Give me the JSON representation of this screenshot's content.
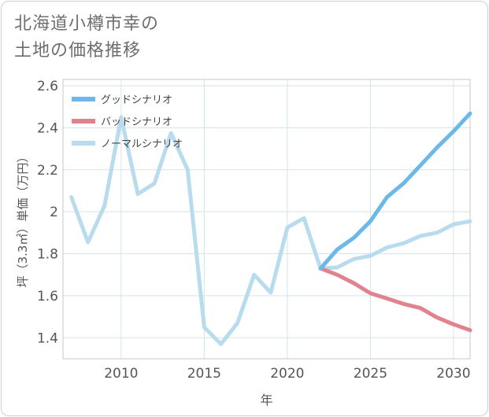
{
  "title_lines": [
    "北海道小樽市幸の",
    "土地の価格推移"
  ],
  "chart_data": {
    "type": "line",
    "xlabel": "年",
    "ylabel": "坪（3.3㎡）単価（万円）",
    "xlim": [
      2006.5,
      2031
    ],
    "ylim": [
      1.3,
      2.63
    ],
    "x_ticks": [
      2010,
      2015,
      2020,
      2025,
      2030
    ],
    "y_ticks": [
      1.4,
      1.6,
      1.8,
      2,
      2.2,
      2.4,
      2.6
    ],
    "y_tick_labels": [
      "1.4",
      "1.6",
      "1.8",
      "2",
      "2.2",
      "2.4",
      "2.6"
    ],
    "grid": true,
    "legend_position": "top-left",
    "series": [
      {
        "name": "グッドシナリオ",
        "color": "#6cb8e9",
        "x": [
          2022,
          2023,
          2024,
          2025,
          2026,
          2027,
          2028,
          2029,
          2030,
          2031
        ],
        "y": [
          1.73,
          1.82,
          1.876,
          1.955,
          2.07,
          2.136,
          2.22,
          2.305,
          2.383,
          2.468
        ]
      },
      {
        "name": "バッドシナリオ",
        "color": "#e0838f",
        "x": [
          2022,
          2023,
          2024,
          2025,
          2026,
          2027,
          2028,
          2029,
          2030,
          2031
        ],
        "y": [
          1.73,
          1.7,
          1.66,
          1.612,
          1.587,
          1.561,
          1.542,
          1.497,
          1.464,
          1.436
        ]
      },
      {
        "name": "ノーマルシナリオ",
        "color": "#b8dcee",
        "x": [
          2007,
          2008,
          2009,
          2010,
          2011,
          2012,
          2013,
          2014,
          2015,
          2016,
          2017,
          2018,
          2019,
          2020,
          2021,
          2022,
          2023,
          2024,
          2025,
          2026,
          2027,
          2028,
          2029,
          2030,
          2031
        ],
        "y": [
          2.07,
          1.855,
          2.03,
          2.45,
          2.085,
          2.135,
          2.375,
          2.2,
          1.45,
          1.37,
          1.47,
          1.7,
          1.615,
          1.925,
          1.97,
          1.73,
          1.735,
          1.775,
          1.79,
          1.83,
          1.85,
          1.885,
          1.9,
          1.94,
          1.955
        ]
      }
    ]
  }
}
